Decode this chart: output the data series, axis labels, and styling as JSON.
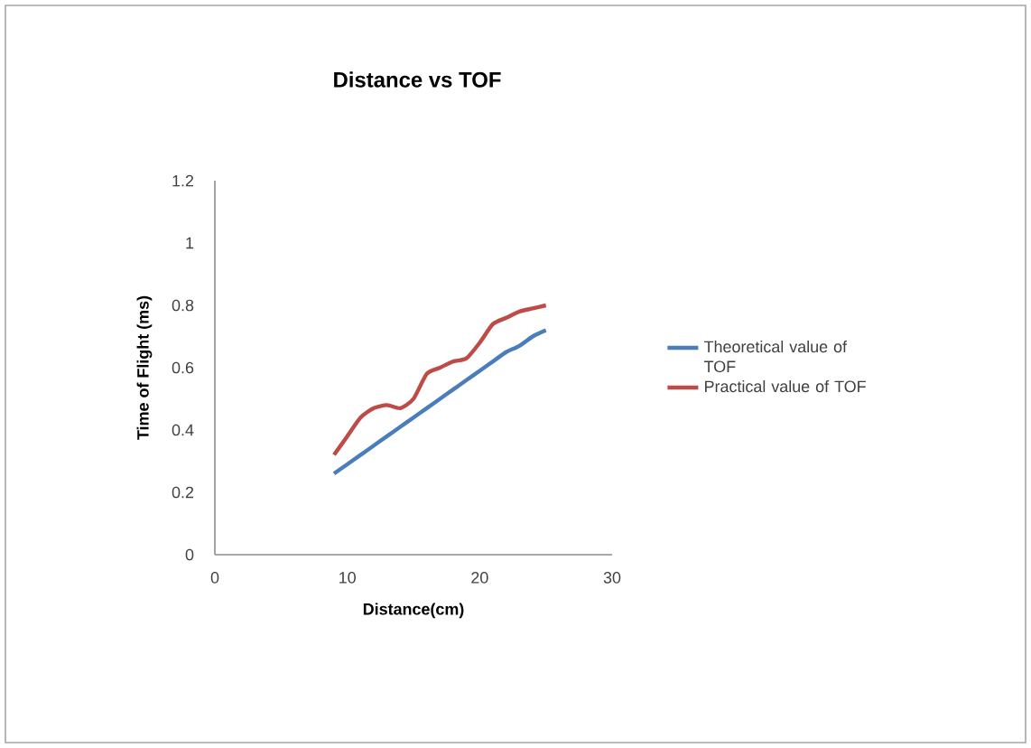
{
  "chart_data": {
    "type": "line",
    "title": "Distance vs TOF",
    "xlabel": "Distance(cm)",
    "ylabel": "Time of Flight (ms)",
    "x": [
      9,
      10,
      11,
      12,
      13,
      14,
      15,
      16,
      17,
      18,
      19,
      20,
      21,
      22,
      23,
      24,
      25
    ],
    "series": [
      {
        "name": "Theoretical value of TOF",
        "color": "#4a7ebb",
        "values": [
          0.26,
          0.29,
          0.32,
          0.35,
          0.38,
          0.41,
          0.44,
          0.47,
          0.5,
          0.53,
          0.56,
          0.59,
          0.62,
          0.65,
          0.67,
          0.7,
          0.72
        ]
      },
      {
        "name": "Practical value of TOF",
        "color": "#be4b48",
        "values": [
          0.32,
          0.38,
          0.44,
          0.47,
          0.48,
          0.47,
          0.5,
          0.58,
          0.6,
          0.62,
          0.63,
          0.68,
          0.74,
          0.76,
          0.78,
          0.79,
          0.8
        ]
      }
    ],
    "xlim": [
      0,
      30
    ],
    "xticks": [
      0,
      10,
      20,
      30
    ],
    "ylim": [
      0,
      1.2
    ],
    "yticks": [
      0,
      0.2,
      0.4,
      0.6,
      0.8,
      1,
      1.2
    ],
    "grid": false,
    "legend": "right",
    "marker": "none",
    "line_style": "solid"
  }
}
